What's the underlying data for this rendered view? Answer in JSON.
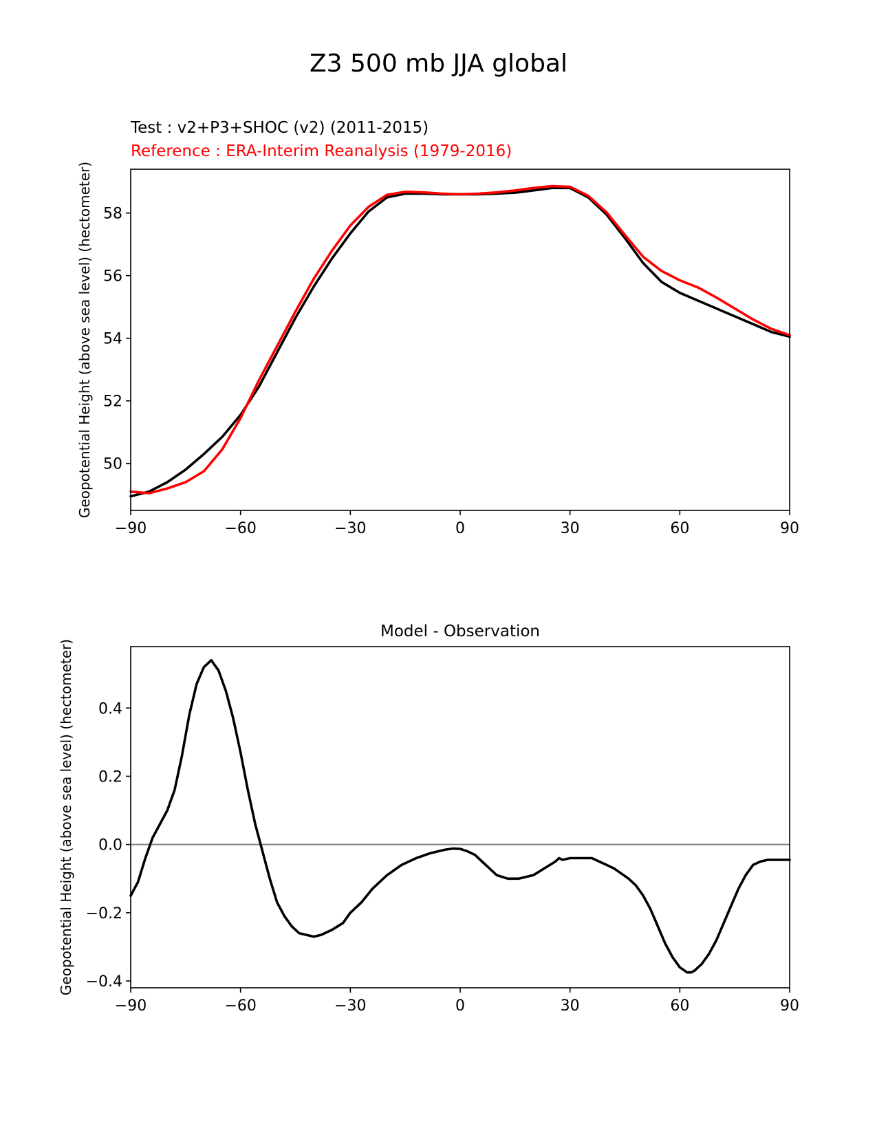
{
  "figure": {
    "suptitle": "Z3 500 mb JJA global",
    "test_label": "Test : v2+P3+SHOC (v2) (2011-2015)",
    "reference_label": "Reference : ERA-Interim Reanalysis (1979-2016)",
    "colors": {
      "test": "#000000",
      "reference": "#ff0000",
      "zero_line": "#808080"
    }
  },
  "chart_data": [
    {
      "type": "line",
      "title": "",
      "xlabel": "",
      "ylabel": "Geopotential Height (above sea level) (hectometer)",
      "xlim": [
        -90,
        90
      ],
      "ylim": [
        48.5,
        59.4
      ],
      "xticks": [
        -90,
        -60,
        -30,
        0,
        30,
        60,
        90
      ],
      "xtick_labels": [
        "−90",
        "−60",
        "−30",
        "0",
        "30",
        "60",
        "90"
      ],
      "yticks": [
        50,
        52,
        54,
        56,
        58
      ],
      "ytick_labels": [
        "50",
        "52",
        "54",
        "56",
        "58"
      ],
      "grid": false,
      "series": [
        {
          "name": "Test : v2+P3+SHOC (v2) (2011-2015)",
          "color": "#000000",
          "x": [
            -90,
            -85,
            -80,
            -75,
            -70,
            -65,
            -60,
            -55,
            -50,
            -45,
            -40,
            -35,
            -30,
            -25,
            -20,
            -15,
            -10,
            -5,
            0,
            5,
            10,
            15,
            20,
            25,
            30,
            35,
            40,
            45,
            50,
            55,
            60,
            65,
            70,
            75,
            80,
            85,
            90
          ],
          "y": [
            48.95,
            49.1,
            49.4,
            49.8,
            50.3,
            50.85,
            51.55,
            52.45,
            53.55,
            54.65,
            55.65,
            56.55,
            57.35,
            58.05,
            58.5,
            58.62,
            58.62,
            58.6,
            58.6,
            58.6,
            58.62,
            58.65,
            58.72,
            58.8,
            58.8,
            58.5,
            57.95,
            57.2,
            56.4,
            55.8,
            55.45,
            55.2,
            54.95,
            54.7,
            54.45,
            54.2,
            54.05
          ]
        },
        {
          "name": "Reference : ERA-Interim Reanalysis (1979-2016)",
          "color": "#ff0000",
          "x": [
            -90,
            -85,
            -80,
            -75,
            -70,
            -65,
            -60,
            -55,
            -50,
            -45,
            -40,
            -35,
            -30,
            -25,
            -20,
            -15,
            -10,
            -5,
            0,
            5,
            10,
            15,
            20,
            25,
            30,
            35,
            40,
            45,
            50,
            55,
            60,
            65,
            70,
            75,
            80,
            85,
            90
          ],
          "y": [
            49.1,
            49.05,
            49.2,
            49.4,
            49.75,
            50.45,
            51.45,
            52.65,
            53.75,
            54.85,
            55.9,
            56.8,
            57.6,
            58.2,
            58.58,
            58.68,
            58.66,
            58.62,
            58.6,
            58.62,
            58.66,
            58.72,
            58.8,
            58.86,
            58.84,
            58.55,
            58.02,
            57.3,
            56.6,
            56.15,
            55.85,
            55.62,
            55.3,
            54.95,
            54.6,
            54.3,
            54.1
          ]
        }
      ]
    },
    {
      "type": "line",
      "title": "Model - Observation",
      "xlabel": "",
      "ylabel": "Geopotential Height (above sea level) (hectometer)",
      "xlim": [
        -90,
        90
      ],
      "ylim": [
        -0.42,
        0.58
      ],
      "xticks": [
        -90,
        -60,
        -30,
        0,
        30,
        60,
        90
      ],
      "xtick_labels": [
        "−90",
        "−60",
        "−30",
        "0",
        "30",
        "60",
        "90"
      ],
      "yticks": [
        -0.4,
        -0.2,
        0.0,
        0.2,
        0.4
      ],
      "ytick_labels": [
        "−0.4",
        "−0.2",
        "0.0",
        "0.2",
        "0.4"
      ],
      "grid": false,
      "zero_line": 0,
      "series": [
        {
          "name": "",
          "color": "#000000",
          "x": [
            -90,
            -88,
            -86,
            -84,
            -82,
            -80,
            -78,
            -76,
            -74,
            -72,
            -70,
            -68,
            -66,
            -64,
            -62,
            -60,
            -58,
            -56,
            -54,
            -52,
            -50,
            -48,
            -46,
            -44,
            -42,
            -40,
            -38,
            -35,
            -32,
            -30,
            -27,
            -24,
            -20,
            -16,
            -12,
            -8,
            -4,
            -2,
            0,
            2,
            4,
            6,
            8,
            10,
            13,
            16,
            18,
            20,
            23,
            26,
            27,
            28,
            30,
            32,
            34,
            36,
            38,
            40,
            42,
            44,
            46,
            48,
            50,
            52,
            54,
            56,
            58,
            60,
            62,
            63,
            64,
            66,
            68,
            70,
            72,
            74,
            76,
            78,
            80,
            82,
            84,
            86,
            88,
            90
          ],
          "y": [
            -0.15,
            -0.11,
            -0.04,
            0.02,
            0.06,
            0.1,
            0.16,
            0.26,
            0.38,
            0.47,
            0.52,
            0.54,
            0.51,
            0.45,
            0.37,
            0.27,
            0.16,
            0.06,
            -0.02,
            -0.1,
            -0.17,
            -0.21,
            -0.24,
            -0.26,
            -0.265,
            -0.27,
            -0.265,
            -0.25,
            -0.23,
            -0.2,
            -0.17,
            -0.13,
            -0.09,
            -0.06,
            -0.04,
            -0.025,
            -0.015,
            -0.012,
            -0.013,
            -0.02,
            -0.03,
            -0.05,
            -0.07,
            -0.09,
            -0.1,
            -0.1,
            -0.095,
            -0.09,
            -0.07,
            -0.05,
            -0.04,
            -0.045,
            -0.04,
            -0.04,
            -0.04,
            -0.04,
            -0.05,
            -0.06,
            -0.07,
            -0.085,
            -0.1,
            -0.12,
            -0.15,
            -0.19,
            -0.24,
            -0.29,
            -0.33,
            -0.36,
            -0.375,
            -0.375,
            -0.37,
            -0.35,
            -0.32,
            -0.28,
            -0.23,
            -0.18,
            -0.13,
            -0.09,
            -0.06,
            -0.05,
            -0.045,
            -0.045,
            -0.045,
            -0.045
          ]
        }
      ]
    }
  ]
}
